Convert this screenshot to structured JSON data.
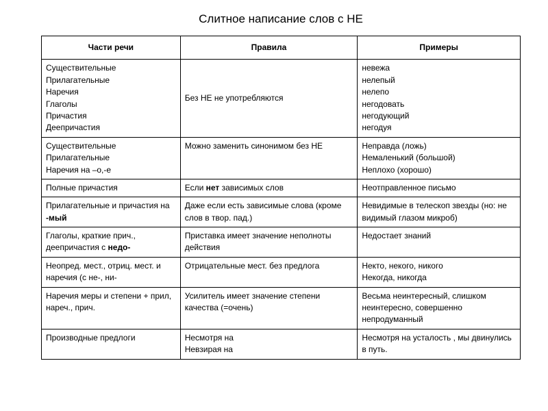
{
  "title": "Слитное написание слов с НЕ",
  "table": {
    "columns": [
      "Части речи",
      "Правила",
      "Примеры"
    ],
    "col_widths": [
      "29%",
      "37%",
      "34%"
    ],
    "rows": [
      {
        "parts": "Существительные<br>Прилагательные<br>Наречия<br>Глаголы<br>Причастия<br>Деепричастия",
        "rule": "Без НЕ не употребляются",
        "examples": "невежа<br>нелепый<br>нелепо<br>негодовать<br>негодующий<br>негодуя"
      },
      {
        "parts": "Существительные<br>Прилагательные<br>Наречия на –о,-е",
        "rule": "Можно заменить синонимом без НЕ",
        "examples": "Неправда (ложь)<br>Немаленький (большой)<br>Неплохо (хорошо)"
      },
      {
        "parts": "Полные причастия",
        "rule": "Если <b>нет</b> зависимых слов",
        "examples": "Неотправленное письмо"
      },
      {
        "parts": "Прилагательные и причастия на <b>-мый</b>",
        "rule": "Даже если есть зависимые слова (кроме слов в твор. пад.)",
        "examples": "Невидимые в телескоп звезды (но: не видимый глазом микроб)"
      },
      {
        "parts": "Глаголы, краткие прич., деепричастия с <b>недо-</b>",
        "rule": "Приставка имеет значение неполноты действия",
        "examples": "Недостает знаний"
      },
      {
        "parts": "Неопред. мест., отриц. мест. и наречия (с не-, ни-",
        "rule": "Отрицательные мест. без предлога",
        "examples": "Некто, некого, никого<br>Некогда, никогда"
      },
      {
        "parts": "Наречия меры и степени + прил, нареч., прич.",
        "rule": "Усилитель имеет значение степени качества (=очень)",
        "examples": "Весьма неинтересный, слишком неинтересно, совершенно непродуманный"
      },
      {
        "parts": "Производные предлоги",
        "rule": "Несмотря на<br>Невзирая на",
        "examples": "Несмотря на усталость , мы двинулись в путь."
      }
    ],
    "border_color": "#000000",
    "background_color": "#ffffff",
    "font_size": 12,
    "header_font_weight": "bold"
  }
}
